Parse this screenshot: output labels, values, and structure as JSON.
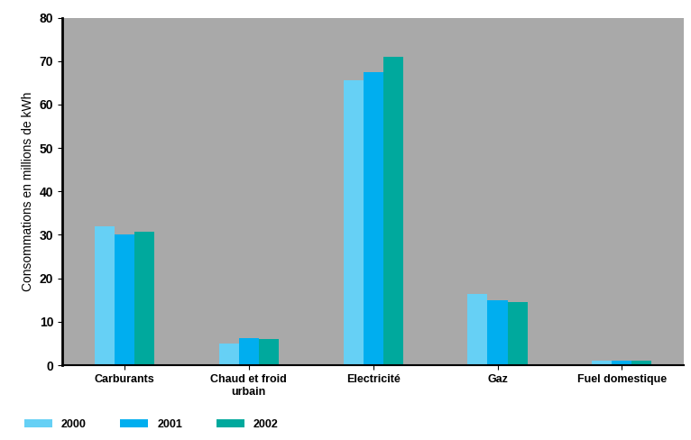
{
  "chart_data": {
    "type": "bar",
    "y_label": "Consommations en millions de kWh",
    "categories": [
      "Carburants",
      "Chaud et froid urbain",
      "Electricité",
      "Gaz",
      "Fuel domestique"
    ],
    "series": [
      {
        "name": "2000",
        "color": "#66d0f5",
        "values": [
          32,
          5,
          65.5,
          16.3,
          1
        ]
      },
      {
        "name": "2001",
        "color": "#00aeef",
        "values": [
          30.2,
          6.3,
          67.5,
          15,
          1
        ]
      },
      {
        "name": "2002",
        "color": "#00a99d",
        "values": [
          30.8,
          6,
          71,
          14.5,
          1
        ]
      }
    ],
    "ylim": [
      0,
      80
    ],
    "yticks": [
      0,
      10,
      20,
      30,
      40,
      50,
      60,
      70,
      80
    ],
    "grid": false,
    "legend": "lower left"
  }
}
